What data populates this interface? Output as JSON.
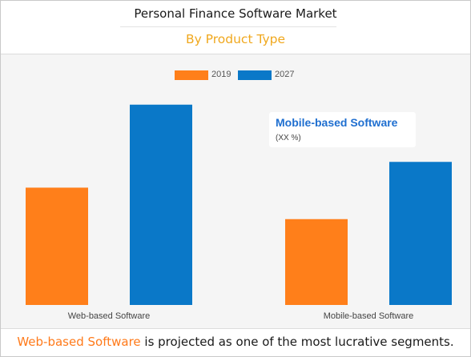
{
  "title": "Personal Finance Software Market",
  "subtitle": "By Product Type",
  "colors": {
    "2019": "#ff7f1a",
    "2027": "#0a78c8",
    "subtitle": "#f0a81e",
    "callout_title": "#1f6fd0"
  },
  "chart_data": {
    "type": "bar",
    "categories": [
      "Web-based Software",
      "Mobile-based Software"
    ],
    "series": [
      {
        "name": "2019",
        "values": [
          41,
          30
        ]
      },
      {
        "name": "2027",
        "values": [
          70,
          50
        ]
      }
    ],
    "ylim": [
      0,
      80
    ],
    "legend": "top-center",
    "grid": false,
    "annotation": {
      "title": "Mobile-based Software",
      "value": "(XX %)"
    }
  },
  "footer": {
    "highlight": "Web-based Software",
    "rest": " is projected as one of the most lucrative segments."
  }
}
